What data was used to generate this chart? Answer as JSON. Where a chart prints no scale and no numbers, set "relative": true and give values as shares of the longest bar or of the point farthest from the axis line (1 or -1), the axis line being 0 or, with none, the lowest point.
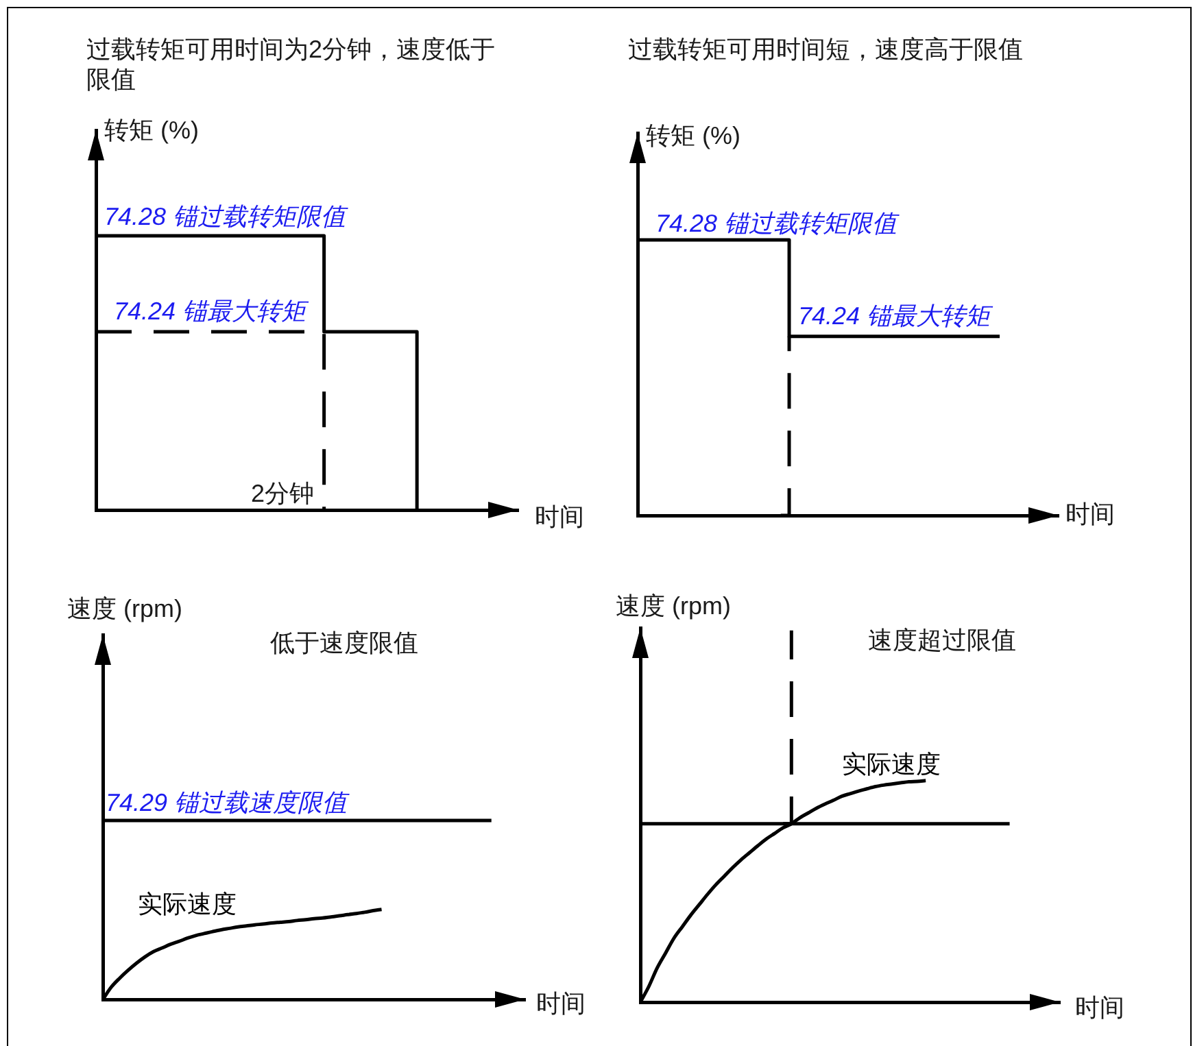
{
  "chart_data": [
    {
      "type": "line",
      "title": "过载转矩可用时间为2分钟，速度低于限值",
      "xlabel": "时间",
      "ylabel": "转矩 (%)",
      "relative": true,
      "grid": false,
      "legend": false,
      "marker": "none",
      "categories": [
        null,
        null,
        null,
        null,
        null,
        null,
        null,
        null,
        null,
        null,
        null,
        null,
        null,
        null,
        null,
        null,
        null,
        null,
        null,
        null,
        null,
        null,
        null,
        null,
        null,
        null,
        null,
        null,
        null,
        null,
        null,
        null,
        null,
        null,
        null,
        null,
        null,
        null,
        null,
        null,
        null,
        null,
        null,
        null,
        null,
        null,
        null,
        null,
        null,
        null,
        null
      ],
      "series": [
        {
          "type": "step",
          "color": "#000000",
          "line_style": "solid",
          "values": [
            1,
            1,
            1,
            1,
            1,
            1,
            1,
            1,
            1,
            1,
            1,
            1,
            1,
            1,
            1,
            1,
            1,
            1,
            1,
            1,
            1,
            1,
            1,
            1,
            1,
            1,
            1,
            0.65,
            0.65,
            0.65,
            0.65,
            0.65,
            0.65,
            0.65,
            0.65,
            0.65,
            0.65,
            0.65,
            0,
            null,
            null,
            null,
            null,
            null,
            null,
            null,
            null,
            null,
            null,
            null,
            null
          ]
        },
        {
          "type": "step",
          "color": "#000000",
          "line_style": "dashed",
          "values": [
            0.65,
            0.65,
            0.65,
            0.65,
            0.65,
            0.65,
            0.65,
            0.65,
            0.65,
            0.65,
            0.65,
            0.65,
            0.65,
            0.65,
            0.65,
            0.65,
            0.65,
            0.65,
            0.65,
            0.65,
            0.65,
            0.65,
            0.65,
            0.65,
            0.65,
            0.65,
            0.65,
            0,
            null,
            null,
            null,
            null,
            null,
            null,
            null,
            null,
            null,
            null,
            null,
            null,
            null,
            null,
            null,
            null,
            null,
            null,
            null,
            null,
            null,
            null,
            null
          ]
        }
      ],
      "annotations": [
        {
          "text": "74.28 锚过载转矩限值",
          "y": 1
        },
        {
          "text": "74.24 锚最大转矩",
          "y": 0.65
        },
        "2分钟"
      ]
    },
    {
      "type": "line",
      "title": "过载转矩可用时间短，速度高于限值",
      "xlabel": "时间",
      "ylabel": "转矩 (%)",
      "relative": true,
      "grid": false,
      "legend": false,
      "marker": "none",
      "categories": [
        null,
        null,
        null,
        null,
        null,
        null,
        null,
        null,
        null,
        null,
        null,
        null,
        null,
        null,
        null,
        null,
        null,
        null,
        null,
        null,
        null,
        null,
        null,
        null,
        null,
        null,
        null,
        null,
        null,
        null,
        null,
        null,
        null,
        null,
        null,
        null,
        null,
        null,
        null,
        null,
        null,
        null,
        null,
        null,
        null,
        null,
        null,
        null,
        null,
        null,
        null
      ],
      "series": [
        {
          "type": "step",
          "color": "#000000",
          "line_style": "solid",
          "values": [
            1,
            1,
            1,
            1,
            1,
            1,
            1,
            1,
            1,
            1,
            1,
            1,
            1,
            1,
            1,
            1,
            1,
            1,
            0.65,
            0.65,
            0.65,
            0.65,
            0.65,
            0.65,
            0.65,
            0.65,
            0.65,
            0.65,
            0.65,
            0.65,
            0.65,
            0.65,
            0.65,
            0.65,
            0.65,
            0.65,
            0.65,
            0.65,
            0.65,
            0.65,
            0.65,
            0.65,
            0.65,
            0.65,
            null,
            null,
            null,
            null,
            null,
            null,
            null
          ]
        },
        {
          "type": "step",
          "color": "#000000",
          "line_style": "dashed",
          "values": [
            null,
            null,
            null,
            null,
            null,
            null,
            null,
            null,
            null,
            null,
            null,
            null,
            null,
            null,
            null,
            null,
            null,
            0,
            0.65,
            null,
            null,
            null,
            null,
            null,
            null,
            null,
            null,
            null,
            null,
            null,
            null,
            null,
            null,
            null,
            null,
            null,
            null,
            null,
            null,
            null,
            null,
            null,
            null,
            null,
            null,
            null,
            null,
            null,
            null,
            null,
            null
          ]
        }
      ],
      "annotations": [
        {
          "text": "74.28 锚过载转矩限值",
          "y": 1
        },
        {
          "text": "74.24 锚最大转矩",
          "y": 0.65
        }
      ]
    },
    {
      "type": "line",
      "title": "低于速度限值",
      "xlabel": "时间",
      "ylabel": "速度 (rpm)",
      "relative": true,
      "grid": false,
      "legend": false,
      "marker": "none",
      "categories": [
        null,
        null,
        null,
        null,
        null,
        null,
        null,
        null,
        null,
        null,
        null,
        null,
        null,
        null,
        null,
        null,
        null,
        null,
        null,
        null,
        null,
        null,
        null,
        null,
        null,
        null,
        null,
        null,
        null,
        null,
        null,
        null,
        null,
        null,
        null,
        null,
        null,
        null,
        null,
        null,
        null,
        null,
        null,
        null,
        null,
        null,
        null,
        null,
        null,
        null,
        null
      ],
      "series": [
        {
          "color": "#000000",
          "line_style": "solid",
          "values": [
            1,
            1,
            1,
            1,
            1,
            1,
            1,
            1,
            1,
            1,
            1,
            1,
            1,
            1,
            1,
            1,
            1,
            1,
            1,
            1,
            1,
            1,
            1,
            1,
            1,
            1,
            1,
            1,
            1,
            1,
            1,
            1,
            1,
            1,
            1,
            1,
            1,
            1,
            1,
            1,
            1,
            1,
            1,
            1,
            1,
            1,
            1,
            null,
            null,
            null,
            null
          ]
        },
        {
          "name": "实际速度",
          "color": "#000000",
          "line_style": "solid",
          "values": [
            0,
            0.069,
            0.119,
            0.163,
            0.203,
            0.238,
            0.267,
            0.287,
            0.308,
            0.324,
            0.342,
            0.357,
            0.368,
            0.379,
            0.389,
            0.397,
            0.405,
            0.411,
            0.417,
            0.421,
            0.427,
            0.431,
            0.435,
            0.441,
            0.445,
            0.451,
            0.455,
            0.461,
            0.467,
            0.474,
            0.48,
            0.487,
            0.496,
            0.503,
            null,
            null,
            null,
            null,
            null,
            null,
            null,
            null,
            null,
            null,
            null,
            null,
            null,
            null,
            null,
            null,
            null
          ]
        }
      ],
      "annotations": [
        {
          "text": "74.29 锚过载速度限值",
          "y": 1
        }
      ]
    },
    {
      "type": "line",
      "title": "速度超过限值",
      "xlabel": "时间",
      "ylabel": "速度 (rpm)",
      "relative": true,
      "grid": false,
      "legend": false,
      "marker": "none",
      "categories": [
        null,
        null,
        null,
        null,
        null,
        null,
        null,
        null,
        null,
        null,
        null,
        null,
        null,
        null,
        null,
        null,
        null,
        null,
        null,
        null,
        null,
        null,
        null,
        null,
        null,
        null,
        null,
        null,
        null,
        null,
        null,
        null,
        null,
        null,
        null,
        null,
        null,
        null,
        null,
        null,
        null,
        null,
        null,
        null,
        null,
        null,
        null,
        null,
        null,
        null,
        null
      ],
      "series": [
        {
          "color": "#000000",
          "line_style": "solid",
          "values": [
            0.48,
            0.48,
            0.48,
            0.48,
            0.48,
            0.48,
            0.48,
            0.48,
            0.48,
            0.48,
            0.48,
            0.48,
            0.48,
            0.48,
            0.48,
            0.48,
            0.48,
            0.48,
            0.48,
            0.48,
            0.48,
            0.48,
            0.48,
            0.48,
            0.48,
            0.48,
            0.48,
            0.48,
            0.48,
            0.48,
            0.48,
            0.48,
            0.48,
            0.48,
            0.48,
            0.48,
            0.48,
            0.48,
            0.48,
            0.48,
            0.48,
            0.48,
            0.48,
            0.48,
            0.48,
            null,
            null,
            null,
            null,
            null,
            null
          ]
        },
        {
          "name": "实际速度",
          "color": "#000000",
          "line_style": "solid",
          "values": [
            0,
            0.042,
            0.092,
            0.132,
            0.172,
            0.203,
            0.234,
            0.262,
            0.29,
            0.316,
            0.339,
            0.362,
            0.383,
            0.402,
            0.421,
            0.439,
            0.454,
            0.469,
            0.48,
            0.496,
            0.509,
            0.522,
            0.533,
            0.543,
            0.554,
            0.561,
            0.568,
            0.574,
            0.58,
            0.584,
            0.587,
            0.59,
            0.593,
            0.594,
            0.596,
            null,
            null,
            null,
            null,
            null,
            null,
            null,
            null,
            null,
            null,
            null,
            null,
            null,
            null,
            null,
            null
          ]
        },
        {
          "type": "step",
          "color": "#000000",
          "line_style": "dashed",
          "values": [
            null,
            null,
            null,
            null,
            null,
            null,
            null,
            null,
            null,
            null,
            null,
            null,
            null,
            null,
            null,
            null,
            null,
            0.48,
            1,
            null,
            null,
            null,
            null,
            null,
            null,
            null,
            null,
            null,
            null,
            null,
            null,
            null,
            null,
            null,
            null,
            null,
            null,
            null,
            null,
            null,
            null,
            null,
            null,
            null,
            null,
            null,
            null,
            null,
            null,
            null,
            null
          ]
        }
      ]
    }
  ]
}
